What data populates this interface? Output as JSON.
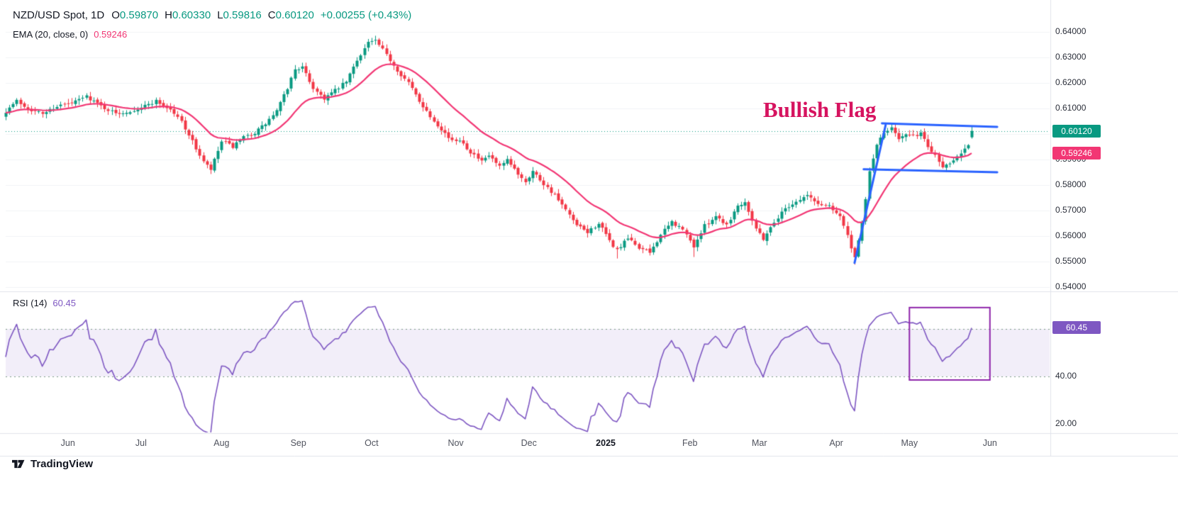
{
  "header": {
    "symbol": "NZD/USD Spot, 1D",
    "ohlc_tokens": [
      {
        "k": "O",
        "v": "0.59870"
      },
      {
        "k": "H",
        "v": "0.60330"
      },
      {
        "k": "L",
        "v": "0.59816"
      },
      {
        "k": "C",
        "v": "0.60120"
      },
      {
        "k": "",
        "v": "+0.00255 (+0.43%)"
      }
    ],
    "ema_label": "EMA (20, close, 0)",
    "ema_value": "0.59246"
  },
  "rsi_legend": {
    "label": "RSI (14)",
    "value": "60.45"
  },
  "badges": {
    "price": "0.60120",
    "ema": "0.59246",
    "rsi": "60.45"
  },
  "annotation_text": "Bullish Flag",
  "footer_brand": "TradingView",
  "axes": {
    "price_ticks": [
      {
        "label": "0.64000",
        "value": 0.64
      },
      {
        "label": "0.63000",
        "value": 0.63
      },
      {
        "label": "0.62000",
        "value": 0.62
      },
      {
        "label": "0.61000",
        "value": 0.61
      },
      {
        "label": "0.59000",
        "value": 0.59
      },
      {
        "label": "0.58000",
        "value": 0.58
      },
      {
        "label": "0.57000",
        "value": 0.57
      },
      {
        "label": "0.56000",
        "value": 0.56
      },
      {
        "label": "0.55000",
        "value": 0.55
      },
      {
        "label": "0.54000",
        "value": 0.54
      }
    ],
    "rsi_ticks": [
      {
        "label": "40.00",
        "value": 40
      },
      {
        "label": "20.00",
        "value": 20
      }
    ],
    "time_ticks": [
      {
        "label": "Jun",
        "i": 17
      },
      {
        "label": "Jul",
        "i": 37
      },
      {
        "label": "Aug",
        "i": 59
      },
      {
        "label": "Sep",
        "i": 80
      },
      {
        "label": "Oct",
        "i": 100
      },
      {
        "label": "Nov",
        "i": 123
      },
      {
        "label": "Dec",
        "i": 143
      },
      {
        "label": "2025",
        "i": 164,
        "bold": true
      },
      {
        "label": "Feb",
        "i": 187
      },
      {
        "label": "Mar",
        "i": 206
      },
      {
        "label": "Apr",
        "i": 227
      },
      {
        "label": "May",
        "i": 247
      },
      {
        "label": "Jun",
        "i": 269
      }
    ]
  },
  "chart_data": {
    "type": "candlestick",
    "title": "NZD/USD Spot, 1D",
    "symbol": "NZD/USD Spot",
    "timeframe": "1D",
    "ylim": [
      0.54,
      0.64
    ],
    "price_line": 0.6012,
    "num_candles": 265,
    "last_ohlc": {
      "open": 0.5987,
      "high": 0.6033,
      "low": 0.59816,
      "close": 0.6012,
      "change": "+0.00255",
      "change_pct": "+0.43%"
    },
    "close_anchors": [
      [
        0,
        0.609
      ],
      [
        3,
        0.613
      ],
      [
        6,
        0.61
      ],
      [
        10,
        0.608
      ],
      [
        14,
        0.611
      ],
      [
        18,
        0.612
      ],
      [
        22,
        0.6148
      ],
      [
        26,
        0.611
      ],
      [
        30,
        0.608
      ],
      [
        34,
        0.609
      ],
      [
        38,
        0.611
      ],
      [
        41,
        0.613
      ],
      [
        45,
        0.6095
      ],
      [
        48,
        0.605
      ],
      [
        51,
        0.597
      ],
      [
        54,
        0.589
      ],
      [
        56,
        0.586
      ],
      [
        59,
        0.597
      ],
      [
        62,
        0.595
      ],
      [
        65,
        0.5985
      ],
      [
        68,
        0.6005
      ],
      [
        71,
        0.604
      ],
      [
        74,
        0.609
      ],
      [
        77,
        0.618
      ],
      [
        79,
        0.6255
      ],
      [
        81,
        0.626
      ],
      [
        84,
        0.618
      ],
      [
        87,
        0.614
      ],
      [
        90,
        0.617
      ],
      [
        93,
        0.6205
      ],
      [
        96,
        0.629
      ],
      [
        99,
        0.636
      ],
      [
        101,
        0.6365
      ],
      [
        104,
        0.631
      ],
      [
        107,
        0.625
      ],
      [
        110,
        0.62
      ],
      [
        113,
        0.613
      ],
      [
        116,
        0.607
      ],
      [
        119,
        0.602
      ],
      [
        122,
        0.597
      ],
      [
        124,
        0.598
      ],
      [
        127,
        0.593
      ],
      [
        130,
        0.589
      ],
      [
        132,
        0.5915
      ],
      [
        135,
        0.587
      ],
      [
        137,
        0.5895
      ],
      [
        140,
        0.5845
      ],
      [
        142,
        0.5815
      ],
      [
        144,
        0.5855
      ],
      [
        147,
        0.5805
      ],
      [
        150,
        0.576
      ],
      [
        153,
        0.57
      ],
      [
        156,
        0.564
      ],
      [
        159,
        0.5615
      ],
      [
        162,
        0.565
      ],
      [
        165,
        0.558
      ],
      [
        167,
        0.5545
      ],
      [
        170,
        0.559
      ],
      [
        173,
        0.5555
      ],
      [
        176,
        0.5535
      ],
      [
        179,
        0.5605
      ],
      [
        182,
        0.5655
      ],
      [
        185,
        0.5625
      ],
      [
        188,
        0.556
      ],
      [
        191,
        0.564
      ],
      [
        194,
        0.568
      ],
      [
        197,
        0.5645
      ],
      [
        200,
        0.572
      ],
      [
        202,
        0.5735
      ],
      [
        205,
        0.563
      ],
      [
        207,
        0.559
      ],
      [
        210,
        0.5655
      ],
      [
        213,
        0.571
      ],
      [
        216,
        0.5735
      ],
      [
        219,
        0.576
      ],
      [
        222,
        0.5725
      ],
      [
        225,
        0.572
      ],
      [
        228,
        0.568
      ],
      [
        230,
        0.56
      ],
      [
        232,
        0.551
      ],
      [
        234,
        0.565
      ],
      [
        236,
        0.585
      ],
      [
        238,
        0.596
      ],
      [
        240,
        0.6
      ],
      [
        242,
        0.603
      ],
      [
        244,
        0.5985
      ],
      [
        246,
        0.5995
      ],
      [
        248,
        0.599
      ],
      [
        250,
        0.6005
      ],
      [
        252,
        0.595
      ],
      [
        254,
        0.592
      ],
      [
        256,
        0.587
      ],
      [
        258,
        0.589
      ],
      [
        260,
        0.5915
      ],
      [
        262,
        0.5945
      ],
      [
        263,
        0.596
      ],
      [
        264,
        0.6012
      ]
    ],
    "wick_extremes": [
      {
        "i": 101,
        "high": 0.638
      },
      {
        "i": 167,
        "low": 0.5512
      },
      {
        "i": 188,
        "low": 0.5518
      },
      {
        "i": 232,
        "low": 0.5488
      }
    ],
    "overlays": [
      {
        "name": "EMA",
        "period": 20,
        "source": "close",
        "offset": 0,
        "value": 0.59246,
        "color": "#f23674"
      }
    ],
    "rsi": {
      "period": 14,
      "value": 60.45,
      "bands": [
        60,
        40
      ],
      "visible_range": [
        17,
        74
      ],
      "color": "#7e57c2"
    },
    "annotations": {
      "label": {
        "text": "Bullish Flag",
        "color": "#d6135f"
      },
      "flag_pole": {
        "i1": 232,
        "p1": 0.5495,
        "i2": 240.5,
        "p2": 0.6035
      },
      "flag_top": {
        "i1": 239.5,
        "p1": 0.6042,
        "i2": 271,
        "p2": 0.6028
      },
      "flag_bottom": {
        "i1": 234.5,
        "p1": 0.5862,
        "i2": 271,
        "p2": 0.585
      },
      "rsi_box": {
        "i1": 247,
        "i2": 269,
        "v1": 69,
        "v2": 38.5
      }
    },
    "colors": {
      "up": "#089981",
      "down": "#f23645",
      "ema": "#f23674",
      "rsi": "#7e57c2",
      "flag": "#2962ff",
      "box": "#8e24aa",
      "price_badge": "#089981",
      "grid": "#f1f3f6",
      "separator": "#e0e3eb",
      "band_fill": "rgba(126,87,194,0.10)",
      "band_line": "#7b9a85",
      "price_line": "#089981"
    }
  }
}
